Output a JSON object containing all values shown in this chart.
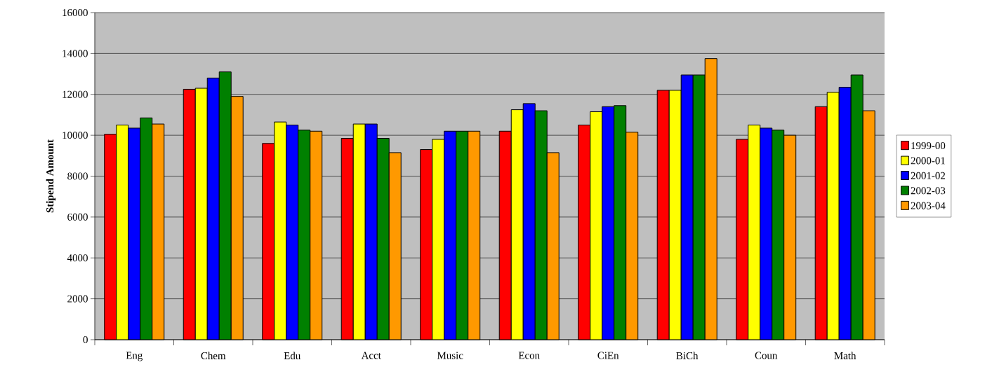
{
  "chart_data": {
    "type": "bar",
    "ylabel": "Stipend Amount",
    "categories": [
      "Eng",
      "Chem",
      "Edu",
      "Acct",
      "Music",
      "Econ",
      "CiEn",
      "BiCh",
      "Coun",
      "Math"
    ],
    "series": [
      {
        "name": "1999-00",
        "color": "#ff0000",
        "values": [
          10050,
          12250,
          9600,
          9850,
          9300,
          10200,
          10500,
          12200,
          9800,
          11400
        ]
      },
      {
        "name": "2000-01",
        "color": "#ffff00",
        "values": [
          10500,
          12300,
          10650,
          10550,
          9800,
          11250,
          11150,
          12200,
          10500,
          12100
        ]
      },
      {
        "name": "2001-02",
        "color": "#0000ff",
        "values": [
          10350,
          12800,
          10500,
          10550,
          10200,
          11550,
          11400,
          12950,
          10350,
          12350
        ]
      },
      {
        "name": "2002-03",
        "color": "#008000",
        "values": [
          10850,
          13100,
          10250,
          9850,
          10200,
          11200,
          11450,
          12950,
          10250,
          12950
        ]
      },
      {
        "name": "2003-04",
        "color": "#ff9900",
        "values": [
          10550,
          11900,
          10200,
          9150,
          10200,
          9150,
          10150,
          13750,
          10000,
          11200
        ]
      }
    ],
    "ylim": [
      0,
      16000
    ],
    "yticks": [
      0,
      2000,
      4000,
      6000,
      8000,
      10000,
      12000,
      14000,
      16000
    ],
    "grid": "y",
    "legend": "right"
  }
}
